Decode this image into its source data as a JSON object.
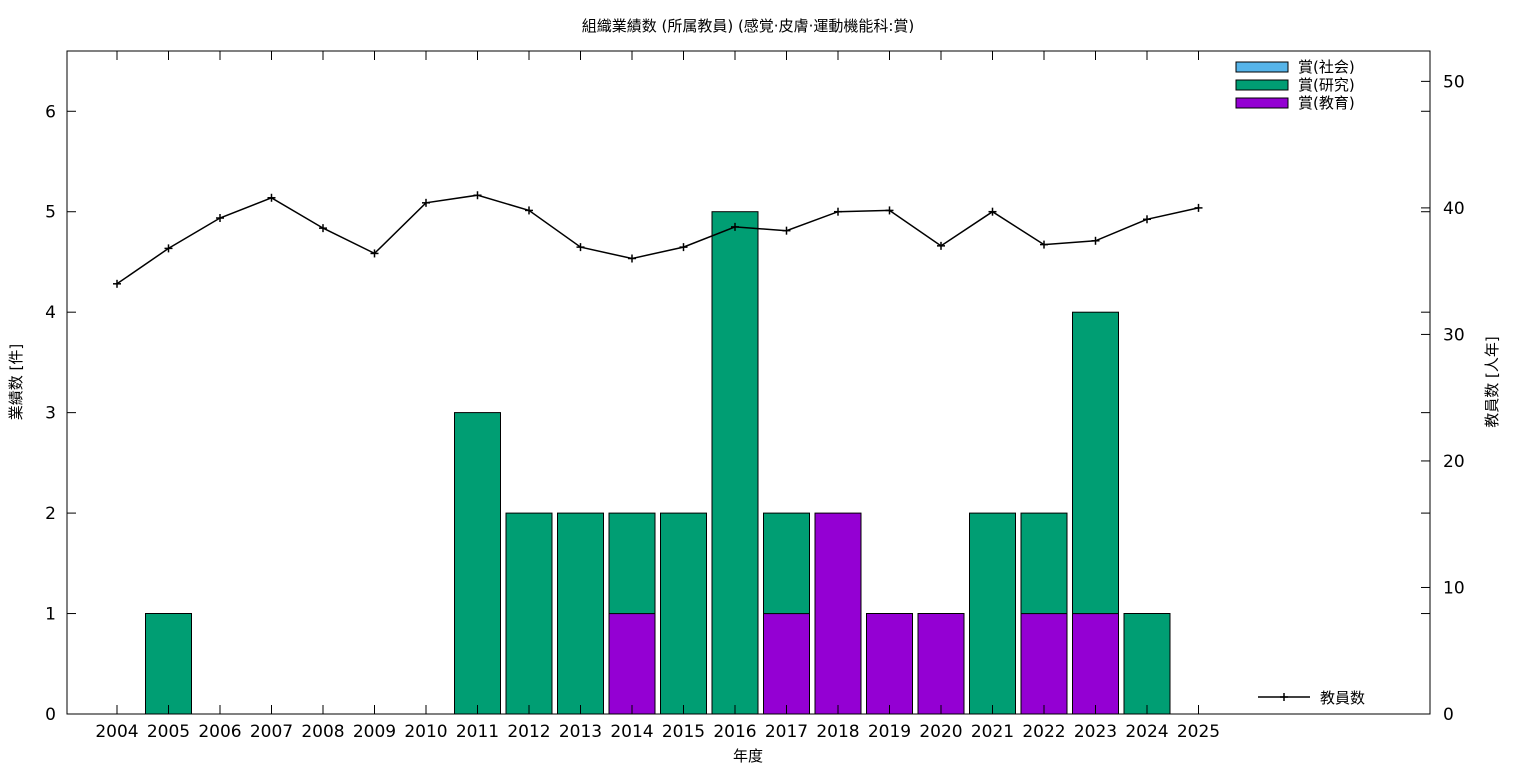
{
  "chart_data": {
    "type": "bar",
    "title": "組織業績数 (所属教員) (感覚·皮膚·運動機能科:賞)",
    "xlabel": "年度",
    "ylabel": "業績数 [件]",
    "y2label": "教員数 [人年]",
    "categories": [
      "2004",
      "2005",
      "2006",
      "2007",
      "2008",
      "2009",
      "2010",
      "2011",
      "2012",
      "2013",
      "2014",
      "2015",
      "2016",
      "2017",
      "2018",
      "2019",
      "2020",
      "2021",
      "2022",
      "2023",
      "2024",
      "2025"
    ],
    "ylim": [
      0,
      6.6
    ],
    "y2lim": [
      0,
      52.4
    ],
    "yticks": [
      0,
      1,
      2,
      3,
      4,
      5,
      6
    ],
    "y2ticks": [
      0,
      10,
      20,
      30,
      40,
      50
    ],
    "stacked": true,
    "grid": false,
    "legend_position": "top-right",
    "series": [
      {
        "name": "賞(社会)",
        "color": "#56b4e9",
        "values": [
          0,
          0,
          0,
          0,
          0,
          0,
          0,
          0,
          0,
          0,
          0,
          0,
          0,
          0,
          0,
          0,
          0,
          0,
          0,
          0,
          0,
          0
        ]
      },
      {
        "name": "賞(研究)",
        "color": "#009e73",
        "values": [
          0,
          1,
          0,
          0,
          0,
          0,
          0,
          3,
          2,
          2,
          1,
          2,
          5,
          1,
          0,
          0,
          0,
          2,
          1,
          3,
          1,
          0
        ]
      },
      {
        "name": "賞(教育)",
        "color": "#9400d3",
        "values": [
          0,
          0,
          0,
          0,
          0,
          0,
          0,
          0,
          0,
          0,
          1,
          0,
          0,
          1,
          2,
          1,
          1,
          0,
          1,
          1,
          0,
          0
        ]
      }
    ],
    "stack_order": [
      "賞(教育)",
      "賞(研究)",
      "賞(社会)"
    ],
    "line_series": {
      "name": "教員数",
      "axis": "y2",
      "color": "#000000",
      "values": [
        34.0,
        36.8,
        39.2,
        40.8,
        38.4,
        36.4,
        40.4,
        41.0,
        39.8,
        36.9,
        36.0,
        36.9,
        38.5,
        38.2,
        39.7,
        39.8,
        37.0,
        39.7,
        37.1,
        37.4,
        39.1,
        40.0
      ]
    },
    "legend_line_position": "bottom-right"
  }
}
